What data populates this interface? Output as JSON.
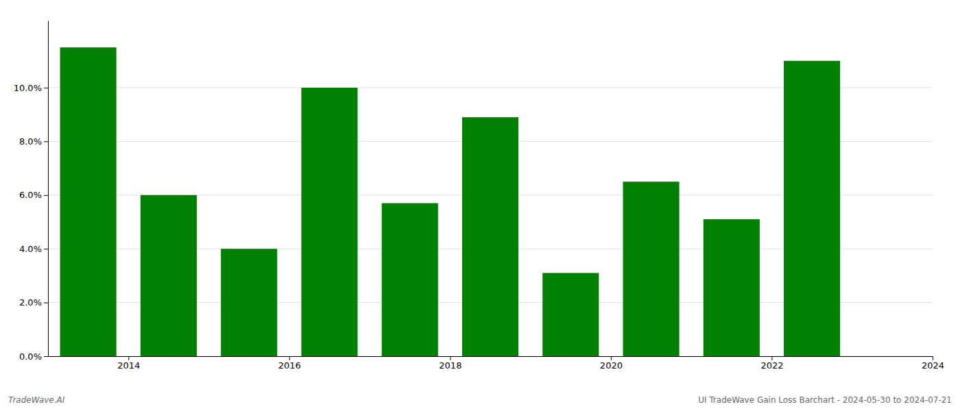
{
  "chart_data": {
    "type": "bar",
    "x": [
      2014,
      2015,
      2016,
      2017,
      2018,
      2019,
      2020,
      2021,
      2022,
      2023
    ],
    "values": [
      0.115,
      0.06,
      0.04,
      0.1,
      0.057,
      0.089,
      0.031,
      0.065,
      0.051,
      0.11
    ],
    "color": "#008000",
    "xlim": [
      2013.5,
      2024.5
    ],
    "xticks": [
      {
        "value": 2014.5,
        "label": "2014"
      },
      {
        "value": 2016.5,
        "label": "2016"
      },
      {
        "value": 2018.5,
        "label": "2018"
      },
      {
        "value": 2020.5,
        "label": "2020"
      },
      {
        "value": 2022.5,
        "label": "2022"
      },
      {
        "value": 2024.5,
        "label": "2024"
      }
    ],
    "ylim": [
      0.0,
      0.125
    ],
    "yticks": [
      {
        "value": 0.0,
        "label": "0.0%"
      },
      {
        "value": 0.02,
        "label": "2.0%"
      },
      {
        "value": 0.04,
        "label": "4.0%"
      },
      {
        "value": 0.06,
        "label": "6.0%"
      },
      {
        "value": 0.08,
        "label": "8.0%"
      },
      {
        "value": 0.1,
        "label": "10.0%"
      }
    ],
    "grid": true,
    "annotations": [
      "TradeWave.AI",
      "UI TradeWave Gain Loss Barchart - 2024-05-30 to 2024-07-21"
    ]
  }
}
